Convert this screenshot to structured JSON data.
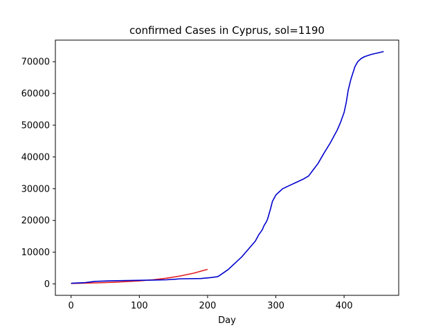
{
  "chart_data": {
    "type": "line",
    "title": "confirmed Cases in Cyprus, sol=1190",
    "xlabel": "Day",
    "ylabel": "",
    "xlim": [
      -23,
      480
    ],
    "ylim": [
      -3600,
      76800
    ],
    "xticks": [
      0,
      100,
      200,
      300,
      400
    ],
    "xtick_labels": [
      "0",
      "100",
      "200",
      "300",
      "400"
    ],
    "yticks": [
      0,
      10000,
      20000,
      30000,
      40000,
      50000,
      60000,
      70000
    ],
    "ytick_labels": [
      "0",
      "10000",
      "20000",
      "30000",
      "40000",
      "50000",
      "60000",
      "70000"
    ],
    "grid": false,
    "series": [
      {
        "color": "#e31a1c",
        "x": [
          0,
          20,
          40,
          60,
          80,
          100,
          120,
          140,
          160,
          180,
          200
        ],
        "y": [
          150,
          250,
          350,
          500,
          700,
          950,
          1300,
          1800,
          2500,
          3400,
          4600
        ]
      },
      {
        "color": "#0000cd",
        "x": [
          0,
          10,
          20,
          35,
          60,
          90,
          120,
          140,
          160,
          190,
          205,
          215,
          220,
          230,
          240,
          250,
          260,
          270,
          275,
          280,
          283,
          286,
          288,
          292,
          295,
          300,
          305,
          310,
          320,
          330,
          340,
          348,
          355,
          362,
          370,
          380,
          390,
          395,
          400,
          403,
          406,
          410,
          413,
          416,
          420,
          425,
          430,
          440,
          450,
          458
        ],
        "y": [
          200,
          300,
          400,
          800,
          1000,
          1100,
          1200,
          1300,
          1600,
          1700,
          2000,
          2300,
          3000,
          4500,
          6500,
          8500,
          11000,
          13500,
          15500,
          17000,
          18500,
          19500,
          20500,
          23500,
          26000,
          28000,
          29000,
          30000,
          31000,
          32000,
          33000,
          34000,
          36000,
          38000,
          41000,
          44500,
          48500,
          51000,
          54000,
          57000,
          61000,
          64500,
          66500,
          68500,
          70000,
          71000,
          71600,
          72300,
          72800,
          73200
        ]
      }
    ]
  }
}
